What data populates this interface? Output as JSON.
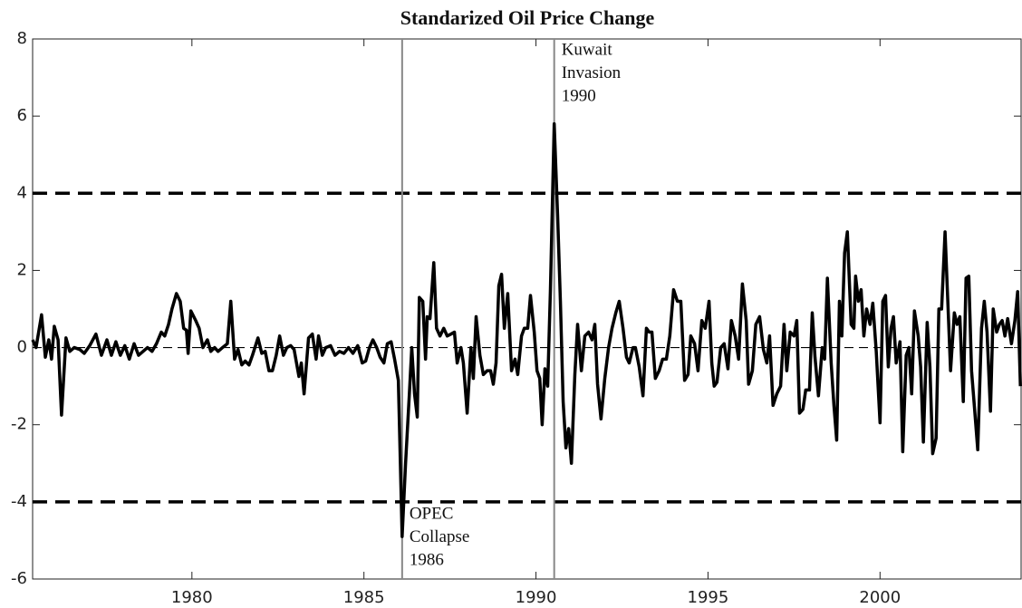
{
  "chart_data": {
    "type": "line",
    "title": "Standarized Oil Price Change",
    "xlim": [
      1975.37,
      2004.1
    ],
    "xticks": [
      1980,
      1985,
      1990,
      1995,
      2000
    ],
    "ylim": [
      -6,
      8
    ],
    "yticks": [
      -6,
      -4,
      -2,
      0,
      2,
      4,
      6,
      8
    ],
    "threshold_lines": [
      4,
      -4
    ],
    "baseline": 0,
    "events": [
      {
        "x": 1986.11,
        "label": [
          "OPEC",
          "Collapse",
          "1986"
        ]
      },
      {
        "x": 1990.53,
        "label": [
          "Kuwait",
          "Invasion",
          "1990"
        ]
      }
    ],
    "x": [
      1975.37,
      1975.47,
      1975.63,
      1975.74,
      1975.84,
      1975.92,
      1976.0,
      1976.11,
      1976.21,
      1976.34,
      1976.45,
      1976.58,
      1976.74,
      1976.87,
      1977.03,
      1977.21,
      1977.37,
      1977.53,
      1977.66,
      1977.79,
      1977.92,
      1978.05,
      1978.18,
      1978.32,
      1978.45,
      1978.58,
      1978.71,
      1978.84,
      1978.97,
      1979.11,
      1979.21,
      1979.32,
      1979.42,
      1979.55,
      1979.66,
      1979.76,
      1979.84,
      1979.89,
      1979.97,
      1980.11,
      1980.21,
      1980.32,
      1980.45,
      1980.55,
      1980.66,
      1980.76,
      1980.89,
      1981.03,
      1981.13,
      1981.24,
      1981.34,
      1981.45,
      1981.55,
      1981.66,
      1981.76,
      1981.92,
      1982.03,
      1982.13,
      1982.24,
      1982.34,
      1982.45,
      1982.55,
      1982.66,
      1982.76,
      1982.87,
      1982.97,
      1983.11,
      1983.18,
      1983.26,
      1983.39,
      1983.5,
      1983.61,
      1983.68,
      1983.79,
      1983.89,
      1984.03,
      1984.16,
      1984.29,
      1984.42,
      1984.55,
      1984.68,
      1984.82,
      1984.95,
      1985.05,
      1985.16,
      1985.26,
      1985.37,
      1985.47,
      1985.58,
      1985.68,
      1985.79,
      1985.89,
      1986.0,
      1986.11,
      1986.21,
      1986.32,
      1986.39,
      1986.47,
      1986.55,
      1986.61,
      1986.71,
      1986.79,
      1986.84,
      1986.92,
      1987.03,
      1987.11,
      1987.21,
      1987.32,
      1987.42,
      1987.53,
      1987.63,
      1987.71,
      1987.82,
      1987.89,
      1988.0,
      1988.11,
      1988.18,
      1988.26,
      1988.37,
      1988.47,
      1988.58,
      1988.68,
      1988.76,
      1988.84,
      1988.92,
      1989.0,
      1989.08,
      1989.18,
      1989.29,
      1989.39,
      1989.47,
      1989.58,
      1989.66,
      1989.76,
      1989.84,
      1989.95,
      1990.03,
      1990.11,
      1990.18,
      1990.26,
      1990.34,
      1990.42,
      1990.53,
      1990.63,
      1990.71,
      1990.79,
      1990.87,
      1990.95,
      1991.03,
      1991.13,
      1991.21,
      1991.32,
      1991.42,
      1991.53,
      1991.63,
      1991.71,
      1991.79,
      1991.89,
      1992.0,
      1992.11,
      1992.21,
      1992.32,
      1992.42,
      1992.53,
      1992.63,
      1992.71,
      1992.82,
      1992.89,
      1993.0,
      1993.11,
      1993.21,
      1993.29,
      1993.37,
      1993.47,
      1993.58,
      1993.68,
      1993.79,
      1993.89,
      1994.0,
      1994.11,
      1994.21,
      1994.32,
      1994.42,
      1994.5,
      1994.61,
      1994.71,
      1994.82,
      1994.92,
      1995.03,
      1995.11,
      1995.18,
      1995.26,
      1995.37,
      1995.47,
      1995.58,
      1995.68,
      1995.79,
      1995.89,
      1996.0,
      1996.11,
      1996.18,
      1996.29,
      1996.39,
      1996.5,
      1996.61,
      1996.71,
      1996.79,
      1996.89,
      1997.0,
      1997.11,
      1997.21,
      1997.29,
      1997.39,
      1997.5,
      1997.58,
      1997.66,
      1997.76,
      1997.84,
      1997.95,
      1998.03,
      1998.11,
      1998.21,
      1998.32,
      1998.39,
      1998.47,
      1998.58,
      1998.66,
      1998.74,
      1998.82,
      1998.89,
      1998.97,
      1999.05,
      1999.16,
      1999.24,
      1999.29,
      1999.37,
      1999.45,
      1999.53,
      1999.61,
      1999.71,
      1999.79,
      1999.89,
      2000.0,
      2000.08,
      2000.16,
      2000.24,
      2000.32,
      2000.39,
      2000.47,
      2000.58,
      2000.66,
      2000.76,
      2000.84,
      2000.92,
      2001.0,
      2001.11,
      2001.18,
      2001.26,
      2001.37,
      2001.45,
      2001.53,
      2001.63,
      2001.71,
      2001.79,
      2001.89,
      2001.97,
      2002.05,
      2002.16,
      2002.24,
      2002.32,
      2002.42,
      2002.5,
      2002.58,
      2002.66,
      2002.74,
      2002.84,
      2002.95,
      2003.03,
      2003.11,
      2003.21,
      2003.29,
      2003.39,
      2003.47,
      2003.55,
      2003.63,
      2003.71,
      2003.82,
      2003.92,
      2004.0,
      2004.08
    ],
    "series": [
      {
        "color": "#000000",
        "values": [
          0.2,
          0.0,
          0.85,
          -0.25,
          0.2,
          -0.3,
          0.55,
          0.2,
          -1.75,
          0.25,
          -0.1,
          0.0,
          -0.05,
          -0.15,
          0.05,
          0.35,
          -0.2,
          0.2,
          -0.2,
          0.15,
          -0.2,
          0.05,
          -0.3,
          0.1,
          -0.2,
          -0.1,
          0.0,
          -0.1,
          0.1,
          0.4,
          0.3,
          0.6,
          1.0,
          1.4,
          1.2,
          0.5,
          0.45,
          -0.15,
          0.95,
          0.7,
          0.5,
          0.0,
          0.2,
          -0.1,
          0.0,
          -0.1,
          0.0,
          0.1,
          1.2,
          -0.3,
          -0.05,
          -0.45,
          -0.35,
          -0.45,
          -0.2,
          0.25,
          -0.15,
          -0.1,
          -0.6,
          -0.6,
          -0.2,
          0.3,
          -0.2,
          0.0,
          0.05,
          -0.05,
          -0.75,
          -0.4,
          -1.2,
          0.25,
          0.35,
          -0.3,
          0.3,
          -0.2,
          0.0,
          0.05,
          -0.2,
          -0.1,
          -0.15,
          0.0,
          -0.15,
          0.05,
          -0.4,
          -0.35,
          0.0,
          0.2,
          0.0,
          -0.25,
          -0.4,
          0.1,
          0.15,
          -0.3,
          -0.85,
          -4.9,
          -3.0,
          -1.2,
          0.0,
          -1.2,
          -1.8,
          1.3,
          1.2,
          -0.3,
          0.8,
          0.75,
          2.2,
          0.5,
          0.3,
          0.5,
          0.3,
          0.35,
          0.4,
          -0.4,
          0.0,
          -0.4,
          -1.7,
          0.0,
          -0.8,
          0.8,
          -0.2,
          -0.7,
          -0.6,
          -0.6,
          -0.95,
          -0.4,
          1.6,
          1.9,
          0.5,
          1.4,
          -0.6,
          -0.3,
          -0.7,
          0.3,
          0.5,
          0.5,
          1.35,
          0.4,
          -0.6,
          -0.8,
          -2.0,
          -0.55,
          -1.0,
          1.5,
          5.8,
          3.4,
          1.2,
          -1.4,
          -2.6,
          -2.1,
          -3.0,
          -0.7,
          0.6,
          -0.6,
          0.3,
          0.4,
          0.2,
          0.6,
          -0.95,
          -1.85,
          -0.8,
          0.0,
          0.5,
          0.9,
          1.2,
          0.5,
          -0.25,
          -0.4,
          0.0,
          0.0,
          -0.5,
          -1.25,
          0.5,
          0.4,
          0.4,
          -0.8,
          -0.6,
          -0.3,
          -0.3,
          0.3,
          1.5,
          1.2,
          1.2,
          -0.85,
          -0.7,
          0.3,
          0.1,
          -0.6,
          0.7,
          0.5,
          1.2,
          -0.4,
          -1.0,
          -0.9,
          0.0,
          0.1,
          -0.55,
          0.7,
          0.3,
          -0.3,
          1.65,
          0.7,
          -0.95,
          -0.6,
          0.6,
          0.8,
          -0.05,
          -0.4,
          0.3,
          -1.5,
          -1.2,
          -1.0,
          0.6,
          -0.6,
          0.4,
          0.3,
          0.7,
          -1.7,
          -1.6,
          -1.1,
          -1.1,
          0.9,
          -0.25,
          -1.25,
          0.0,
          -0.3,
          1.8,
          -0.4,
          -1.5,
          -2.4,
          1.2,
          0.3,
          2.45,
          3.0,
          0.6,
          0.5,
          1.85,
          1.2,
          1.5,
          0.3,
          1.0,
          0.6,
          1.15,
          -0.1,
          -1.95,
          1.2,
          1.35,
          -0.5,
          0.5,
          0.8,
          -0.4,
          0.15,
          -2.7,
          -0.2,
          0.0,
          -1.2,
          0.95,
          0.3,
          -0.5,
          -2.45,
          0.65,
          -0.5,
          -2.75,
          -2.35,
          1.0,
          1.0,
          3.0,
          1.2,
          -0.6,
          0.9,
          0.6,
          0.8,
          -1.4,
          1.8,
          1.85,
          -0.6,
          -1.5,
          -2.65,
          0.5,
          1.2,
          0.4,
          -1.65,
          1.0,
          0.4,
          0.6,
          0.7,
          0.3,
          0.75,
          0.1,
          0.7,
          1.45,
          -1.0
        ]
      }
    ]
  }
}
